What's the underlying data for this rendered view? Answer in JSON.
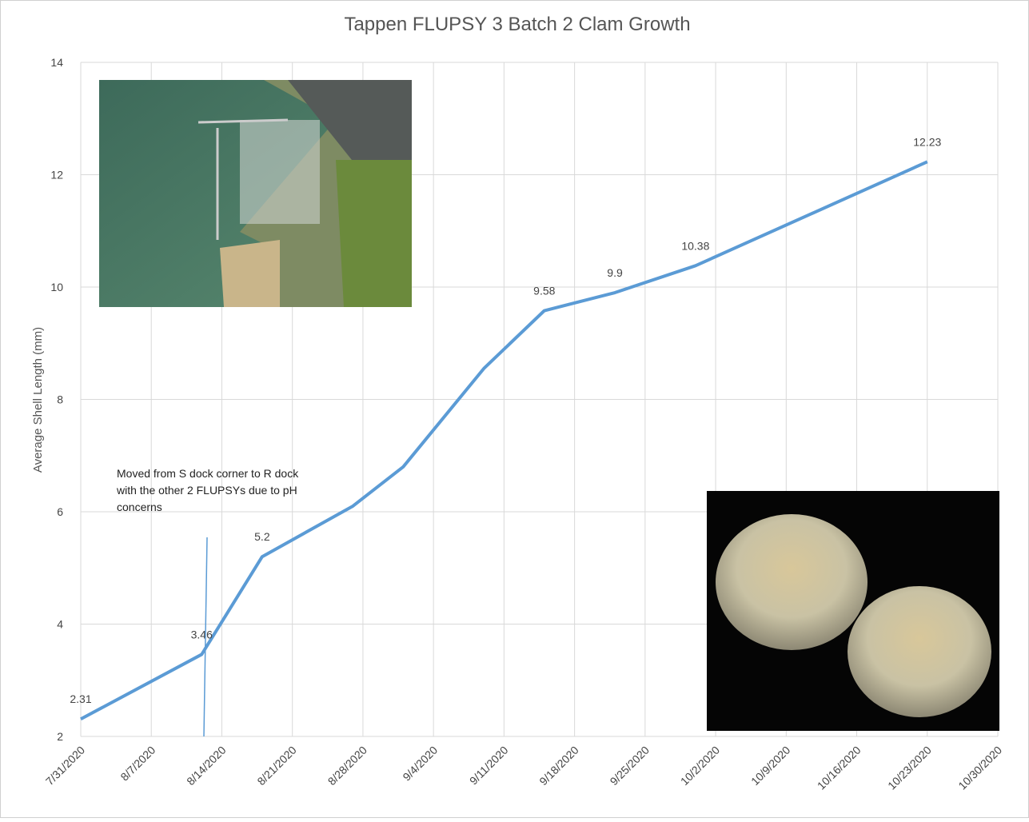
{
  "chart_data": {
    "type": "line",
    "title": "Tappen FLUPSY 3 Batch 2 Clam Growth",
    "y_label": "Average Shell Length (mm)",
    "annotation": "Moved from S dock corner to R dock with the other 2 FLUPSYs due to pH concerns",
    "x": [
      "2020-07-31",
      "2020-08-12",
      "2020-08-18",
      "2020-08-27",
      "2020-09-01",
      "2020-09-09",
      "2020-09-15",
      "2020-09-22",
      "2020-09-30",
      "2020-10-23"
    ],
    "series": [
      {
        "name": "Average Shell Length",
        "color": "#5b9bd5",
        "values": [
          2.31,
          3.46,
          5.2,
          6.1,
          6.8,
          8.55,
          9.58,
          9.9,
          10.38,
          12.23
        ],
        "value_labels": [
          "2.31",
          "3.46",
          "5.2",
          null,
          null,
          null,
          "9.58",
          "9.9",
          "10.38",
          "12.23"
        ]
      }
    ],
    "xlim": [
      "2020-07-31",
      "2020-10-30"
    ],
    "xticks": [
      {
        "value": "2020-07-31",
        "label": "7/31/2020"
      },
      {
        "value": "2020-08-07",
        "label": "8/7/2020"
      },
      {
        "value": "2020-08-14",
        "label": "8/14/2020"
      },
      {
        "value": "2020-08-21",
        "label": "8/21/2020"
      },
      {
        "value": "2020-08-28",
        "label": "8/28/2020"
      },
      {
        "value": "2020-09-04",
        "label": "9/4/2020"
      },
      {
        "value": "2020-09-11",
        "label": "9/11/2020"
      },
      {
        "value": "2020-09-18",
        "label": "9/18/2020"
      },
      {
        "value": "2020-09-25",
        "label": "9/25/2020"
      },
      {
        "value": "2020-10-02",
        "label": "10/2/2020"
      },
      {
        "value": "2020-10-09",
        "label": "10/9/2020"
      },
      {
        "value": "2020-10-16",
        "label": "10/16/2020"
      },
      {
        "value": "2020-10-23",
        "label": "10/23/2020"
      },
      {
        "value": "2020-10-30",
        "label": "10/30/2020"
      }
    ],
    "ylim": [
      2,
      14
    ],
    "yticks": [
      2,
      4,
      6,
      8,
      10,
      12,
      14
    ],
    "grid": true
  }
}
